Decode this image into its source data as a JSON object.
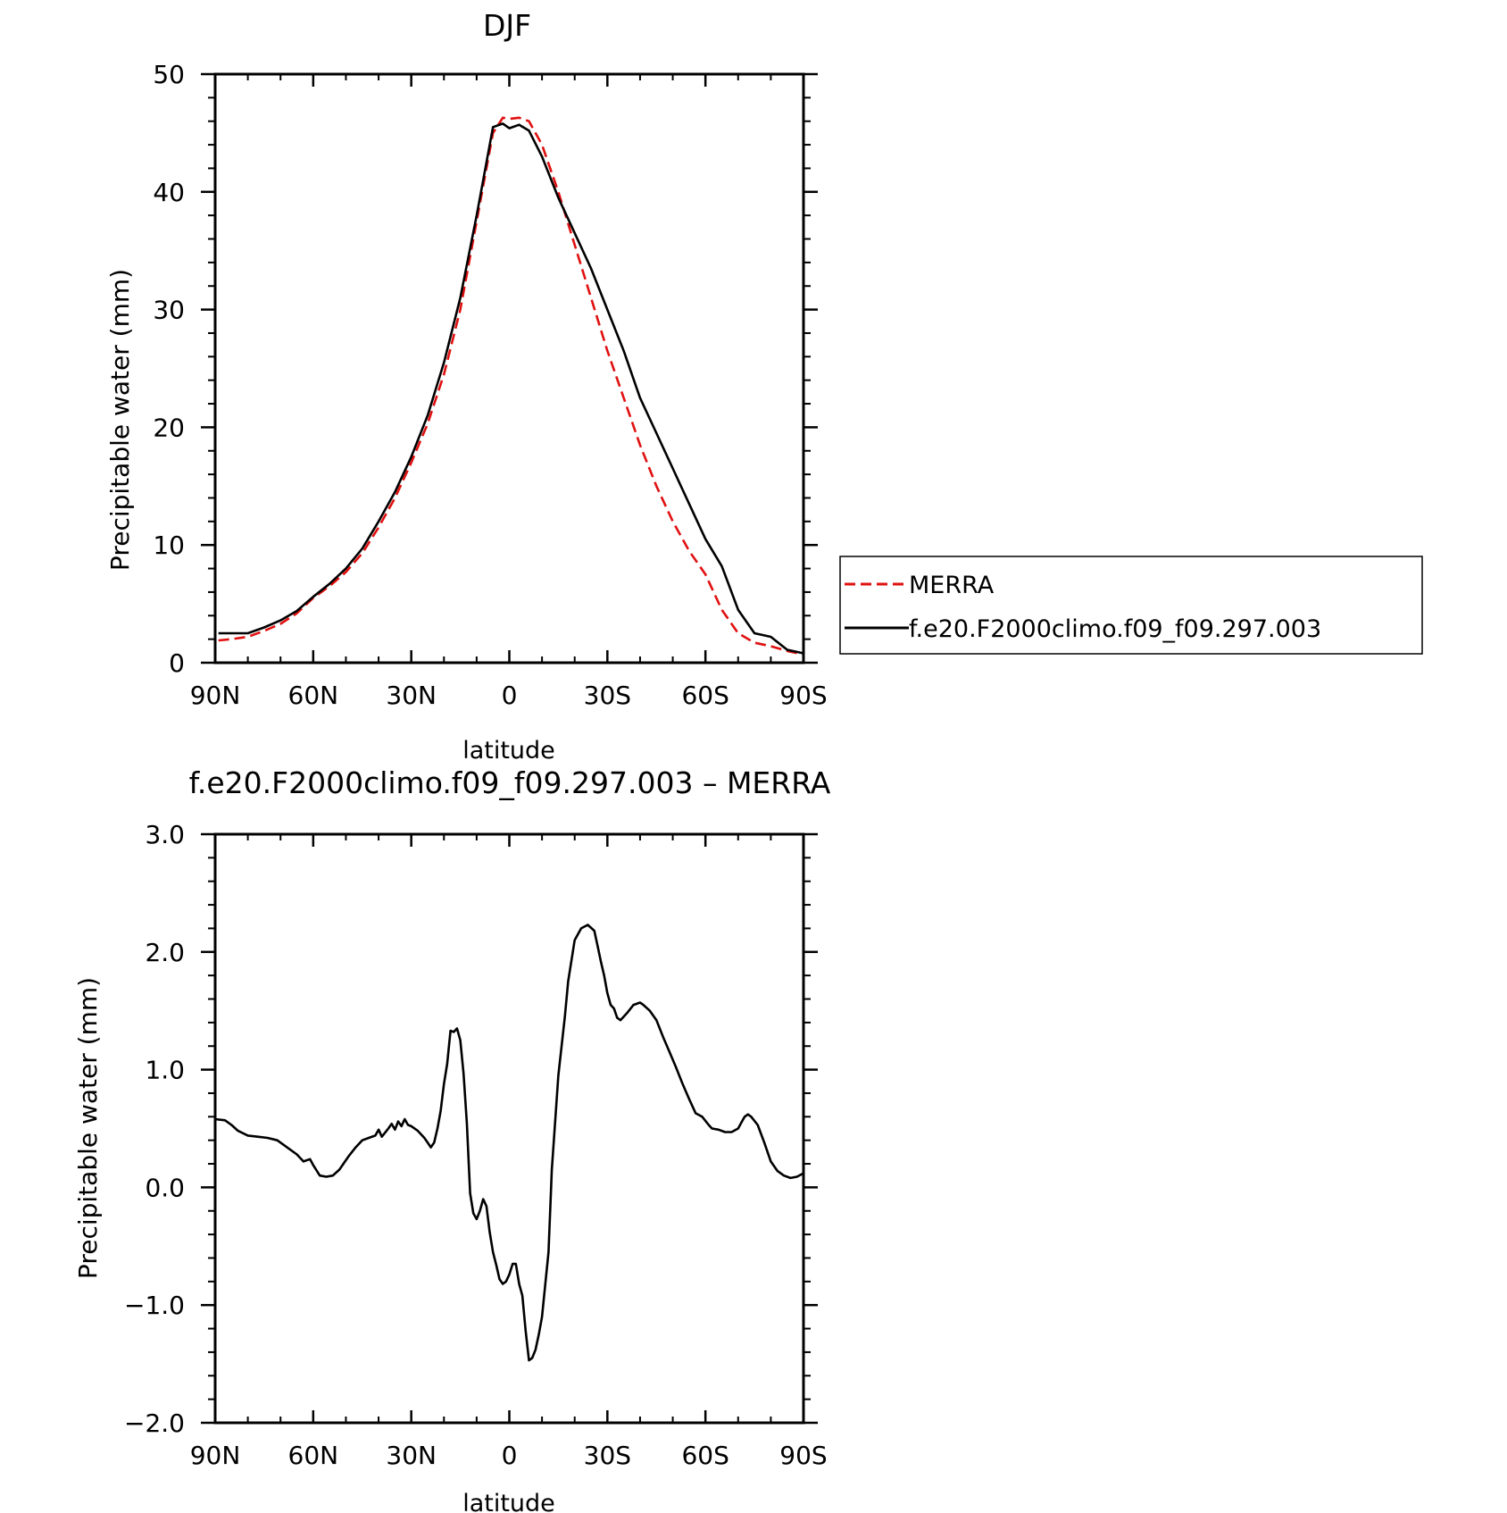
{
  "chart_data": [
    {
      "type": "line",
      "title": "DJF",
      "xlabel": "latitude",
      "ylabel": "Precipitable water (mm)",
      "xlim": [
        90,
        -90
      ],
      "ylim": [
        0,
        50
      ],
      "x_ticks": [
        {
          "value": 90,
          "label": "90N"
        },
        {
          "value": 60,
          "label": "60N"
        },
        {
          "value": 30,
          "label": "30N"
        },
        {
          "value": 0,
          "label": "0"
        },
        {
          "value": -30,
          "label": "30S"
        },
        {
          "value": -60,
          "label": "60S"
        },
        {
          "value": -90,
          "label": "90S"
        }
      ],
      "y_ticks": [
        {
          "value": 0,
          "label": "0"
        },
        {
          "value": 10,
          "label": "10"
        },
        {
          "value": 20,
          "label": "20"
        },
        {
          "value": 30,
          "label": "30"
        },
        {
          "value": 40,
          "label": "40"
        },
        {
          "value": 50,
          "label": "50"
        }
      ],
      "legend": {
        "position": "right"
      },
      "series": [
        {
          "name": "MERRA",
          "color": "#e01010",
          "dash": true,
          "x": [
            89,
            85,
            80,
            75,
            70,
            65,
            60,
            55,
            50,
            45,
            40,
            35,
            30,
            25,
            20,
            15,
            10,
            5,
            2,
            0,
            -3,
            -6,
            -10,
            -15,
            -20,
            -25,
            -30,
            -35,
            -40,
            -45,
            -50,
            -55,
            -60,
            -65,
            -70,
            -75,
            -80,
            -85,
            -90
          ],
          "y": [
            1.9,
            2.0,
            2.2,
            2.7,
            3.3,
            4.2,
            5.5,
            6.5,
            7.7,
            9.3,
            11.5,
            14.0,
            17.0,
            20.3,
            24.5,
            30.0,
            37.5,
            45.0,
            46.3,
            46.2,
            46.3,
            46.0,
            44.0,
            40.0,
            35.5,
            31.0,
            26.5,
            22.5,
            18.5,
            15.0,
            12.0,
            9.5,
            7.5,
            4.5,
            2.5,
            1.7,
            1.4,
            1.0,
            0.7
          ]
        },
        {
          "name": "f.e20.F2000climo.f09_f09.297.003",
          "color": "#000000",
          "dash": false,
          "x": [
            89,
            85,
            80,
            75,
            70,
            65,
            60,
            55,
            50,
            45,
            40,
            35,
            30,
            25,
            20,
            15,
            10,
            5,
            2,
            0,
            -3,
            -6,
            -10,
            -15,
            -20,
            -25,
            -30,
            -35,
            -40,
            -45,
            -50,
            -55,
            -60,
            -65,
            -70,
            -75,
            -80,
            -85,
            -90
          ],
          "y": [
            2.5,
            2.5,
            2.5,
            3.0,
            3.6,
            4.4,
            5.6,
            6.7,
            8.0,
            9.7,
            12.0,
            14.5,
            17.5,
            21.0,
            25.5,
            31.0,
            38.0,
            45.5,
            45.8,
            45.4,
            45.7,
            45.2,
            43.0,
            39.5,
            36.5,
            33.5,
            30.0,
            26.5,
            22.5,
            19.5,
            16.5,
            13.5,
            10.5,
            8.2,
            4.5,
            2.5,
            2.2,
            1.1,
            0.8
          ]
        }
      ]
    },
    {
      "type": "line",
      "title": "f.e20.F2000climo.f09_f09.297.003 – MERRA",
      "xlabel": "latitude",
      "ylabel": "Precipitable water (mm)",
      "xlim": [
        90,
        -90
      ],
      "ylim": [
        -2.0,
        3.0
      ],
      "x_ticks": [
        {
          "value": 90,
          "label": "90N"
        },
        {
          "value": 60,
          "label": "60N"
        },
        {
          "value": 30,
          "label": "30N"
        },
        {
          "value": 0,
          "label": "0"
        },
        {
          "value": -30,
          "label": "30S"
        },
        {
          "value": -60,
          "label": "60S"
        },
        {
          "value": -90,
          "label": "90S"
        }
      ],
      "y_ticks": [
        {
          "value": -2.0,
          "label": "−2.0"
        },
        {
          "value": -1.0,
          "label": "−1.0"
        },
        {
          "value": 0.0,
          "label": "0.0"
        },
        {
          "value": 1.0,
          "label": "1.0"
        },
        {
          "value": 2.0,
          "label": "2.0"
        },
        {
          "value": 3.0,
          "label": "3.0"
        }
      ],
      "series": [
        {
          "color": "#000000",
          "x": [
            90,
            87,
            85,
            83,
            80,
            77,
            74,
            71,
            68,
            65,
            63,
            61,
            60,
            58,
            56,
            54,
            52,
            49,
            47,
            45,
            43,
            41,
            40,
            39,
            37,
            36,
            35,
            34,
            33,
            32,
            31,
            30,
            28,
            26,
            25,
            24,
            23,
            22,
            21,
            20,
            19,
            18,
            17,
            16,
            15,
            14,
            13,
            12,
            11,
            10,
            9,
            8,
            7,
            6,
            5,
            4,
            3,
            2,
            1,
            0,
            -1,
            -2,
            -3,
            -4,
            -5,
            -6,
            -7,
            -8,
            -9,
            -10,
            -12,
            -13,
            -15,
            -17,
            -18,
            -20,
            -22,
            -24,
            -26,
            -27,
            -28,
            -29,
            -30,
            -31,
            -32,
            -33,
            -34,
            -36,
            -38,
            -40,
            -41,
            -43,
            -45,
            -47,
            -49,
            -51,
            -53,
            -55,
            -57,
            -59,
            -61,
            -62,
            -64,
            -66,
            -68,
            -70,
            -71,
            -72,
            -73,
            -74,
            -76,
            -78,
            -80,
            -82,
            -84,
            -86,
            -88,
            -90
          ],
          "y": [
            0.58,
            0.57,
            0.53,
            0.48,
            0.44,
            0.43,
            0.42,
            0.4,
            0.34,
            0.28,
            0.22,
            0.24,
            0.19,
            0.1,
            0.09,
            0.1,
            0.15,
            0.27,
            0.34,
            0.4,
            0.42,
            0.44,
            0.49,
            0.43,
            0.5,
            0.54,
            0.49,
            0.56,
            0.52,
            0.58,
            0.53,
            0.52,
            0.48,
            0.42,
            0.38,
            0.34,
            0.38,
            0.5,
            0.65,
            0.88,
            1.05,
            1.33,
            1.32,
            1.35,
            1.25,
            0.97,
            0.55,
            -0.05,
            -0.22,
            -0.27,
            -0.2,
            -0.1,
            -0.16,
            -0.38,
            -0.55,
            -0.66,
            -0.78,
            -0.82,
            -0.8,
            -0.74,
            -0.65,
            -0.65,
            -0.82,
            -0.92,
            -1.22,
            -1.47,
            -1.45,
            -1.38,
            -1.25,
            -1.1,
            -0.55,
            0.15,
            0.95,
            1.45,
            1.75,
            2.1,
            2.2,
            2.23,
            2.18,
            2.05,
            1.92,
            1.8,
            1.65,
            1.55,
            1.52,
            1.44,
            1.42,
            1.48,
            1.55,
            1.57,
            1.55,
            1.5,
            1.42,
            1.28,
            1.15,
            1.02,
            0.88,
            0.75,
            0.63,
            0.6,
            0.53,
            0.5,
            0.49,
            0.47,
            0.47,
            0.5,
            0.55,
            0.6,
            0.62,
            0.6,
            0.53,
            0.38,
            0.22,
            0.14,
            0.1,
            0.08,
            0.09,
            0.12
          ]
        }
      ]
    }
  ]
}
